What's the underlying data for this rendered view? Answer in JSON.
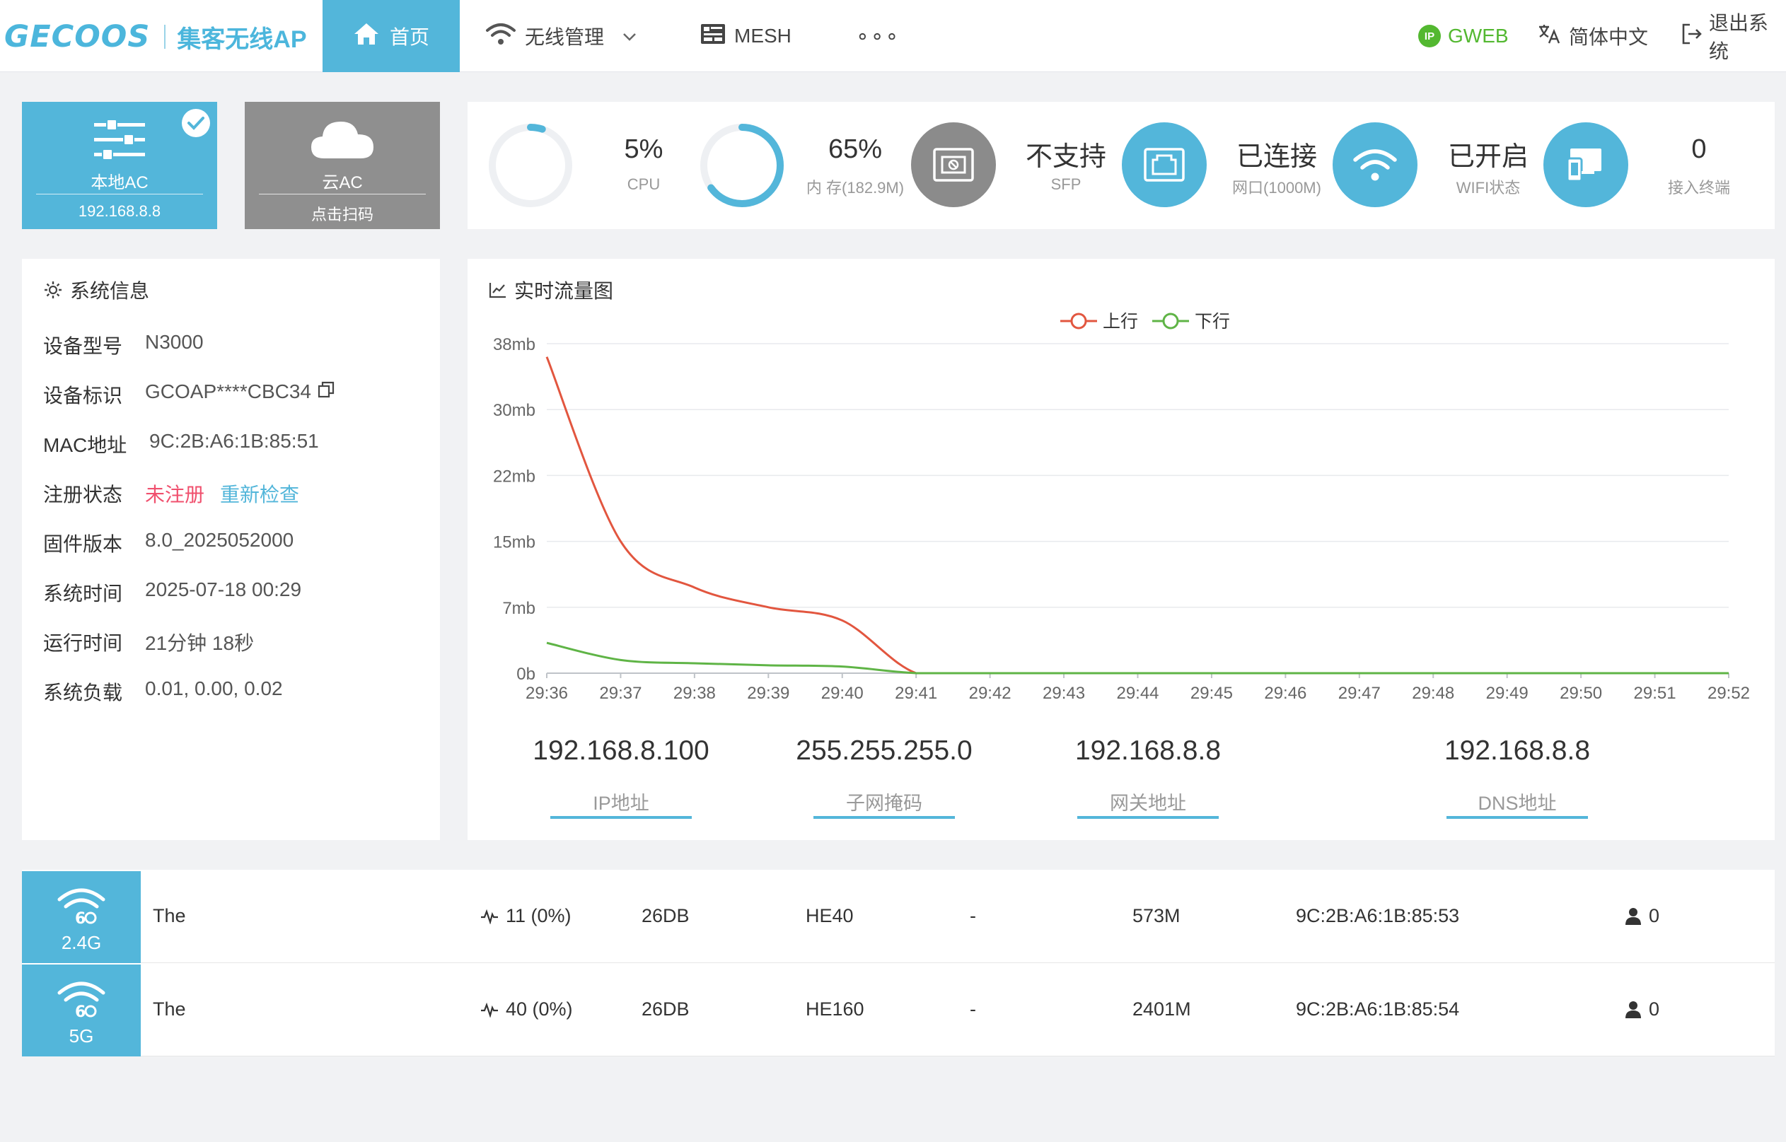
{
  "header": {
    "brand": "GECOOS",
    "brand_sub": "集客无线AP",
    "nav": {
      "home": "首页",
      "wireless": "无线管理",
      "mesh": "MESH",
      "more": "∘∘∘"
    },
    "right": {
      "ip_badge": "IP",
      "gweb": "GWEB",
      "language": "简体中文",
      "logout": "退出系统"
    }
  },
  "ac_cards": {
    "local": {
      "title": "本地AC",
      "sub": "192.168.8.8"
    },
    "cloud": {
      "title": "云AC",
      "sub": "点击扫码"
    }
  },
  "status": {
    "cpu": {
      "value": "5%",
      "label": "CPU",
      "fraction": 0.05
    },
    "memory": {
      "value": "65%",
      "label": "内 存(182.9M)",
      "fraction": 0.65
    },
    "sfp": {
      "value": "不支持",
      "label": "SFP"
    },
    "port": {
      "value": "已连接",
      "label": "网口(1000M)"
    },
    "wifi": {
      "value": "已开启",
      "label": "WIFI状态"
    },
    "clients": {
      "value": "0",
      "label": "接入终端"
    }
  },
  "system_info": {
    "title": "系统信息",
    "rows": [
      {
        "key": "设备型号",
        "value": "N3000"
      },
      {
        "key": "设备标识",
        "value": "GCOAP****CBC34"
      },
      {
        "key": "MAC地址",
        "value": "9C:2B:A6:1B:85:51"
      },
      {
        "key": "注册状态",
        "value": "未注册",
        "action": "重新检查"
      },
      {
        "key": "固件版本",
        "value": "8.0_2025052000"
      },
      {
        "key": "系统时间",
        "value": "2025-07-18 00:29"
      },
      {
        "key": "运行时间",
        "value": "21分钟 18秒"
      },
      {
        "key": "系统负载",
        "value": "0.01, 0.00, 0.02"
      }
    ]
  },
  "traffic": {
    "title": "实时流量图"
  },
  "chart_data": {
    "type": "line",
    "x": [
      "29:36",
      "29:37",
      "29:38",
      "29:39",
      "29:40",
      "29:41",
      "29:42",
      "29:43",
      "29:44",
      "29:45",
      "29:46",
      "29:47",
      "29:48",
      "29:49",
      "29:50",
      "29:51",
      "29:52"
    ],
    "yticks": [
      "0b",
      "7mb",
      "15mb",
      "22mb",
      "30mb",
      "38mb"
    ],
    "ylim": [
      0,
      5
    ],
    "series": [
      {
        "name": "上行",
        "color": "#e2563f",
        "values": [
          4.8,
          2.0,
          1.3,
          1.0,
          0.8,
          0.0,
          0.0,
          0.0,
          0.0,
          0.0,
          0.0,
          0.0,
          0.0,
          0.0,
          0.0,
          0.0,
          0.0
        ]
      },
      {
        "name": "下行",
        "color": "#5fb446",
        "values": [
          0.46,
          0.2,
          0.15,
          0.12,
          0.1,
          0.0,
          0.0,
          0.0,
          0.0,
          0.0,
          0.0,
          0.0,
          0.0,
          0.0,
          0.0,
          0.0,
          0.0
        ]
      }
    ],
    "grid": true,
    "legend": "top-center"
  },
  "network": [
    {
      "value": "192.168.8.100",
      "label": "IP地址"
    },
    {
      "value": "255.255.255.0",
      "label": "子网掩码"
    },
    {
      "value": "192.168.8.8",
      "label": "网关地址"
    },
    {
      "value": "192.168.8.8",
      "label": "DNS地址"
    }
  ],
  "radios": [
    {
      "band": "2.4G",
      "ssid": "The",
      "channel": "11 (0%)",
      "power": "26DB",
      "mode": "HE40",
      "encryption": "-",
      "rate": "573M",
      "mac": "9C:2B:A6:1B:85:53",
      "clients": "0"
    },
    {
      "band": "5G",
      "ssid": "The",
      "channel": "40 (0%)",
      "power": "26DB",
      "mode": "HE160",
      "encryption": "-",
      "rate": "2401M",
      "mac": "9C:2B:A6:1B:85:54",
      "clients": "0"
    }
  ]
}
